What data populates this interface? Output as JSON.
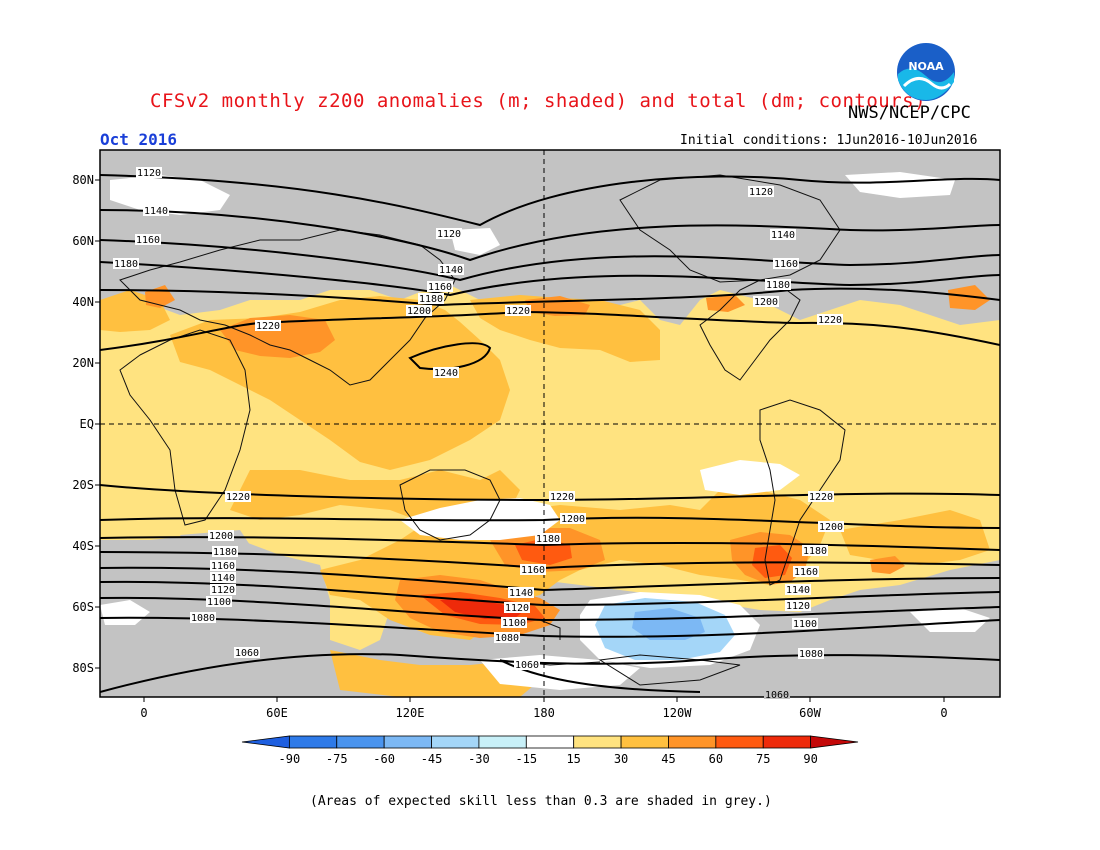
{
  "header": {
    "title": "CFSv2 monthly z200 anomalies (m; shaded) and total (dm; contours)",
    "org": "NWS/NCEP/CPC",
    "logo_text": "NOAA",
    "month": "Oct 2016",
    "init": "Initial conditions: 1Jun2016-10Jun2016"
  },
  "map": {
    "lat_labels": [
      "80N",
      "60N",
      "40N",
      "20N",
      "EQ",
      "20S",
      "40S",
      "60S",
      "80S"
    ],
    "lon_labels": [
      "0",
      "60E",
      "120E",
      "180",
      "120W",
      "60W",
      "0"
    ],
    "contour_values": [
      "1060",
      "1080",
      "1100",
      "1120",
      "1140",
      "1160",
      "1180",
      "1200",
      "1220",
      "1240"
    ],
    "grey_meaning": "skill < 0.3"
  },
  "colorbar": {
    "ticks": [
      "-90",
      "-75",
      "-60",
      "-45",
      "-30",
      "-15",
      "15",
      "30",
      "45",
      "60",
      "75",
      "90"
    ],
    "colors": [
      "#1e5fe0",
      "#2e7ae8",
      "#4a94ee",
      "#7cb8f4",
      "#a4d6f8",
      "#c8f0f8",
      "#ffffff",
      "#ffe380",
      "#ffc040",
      "#ff9428",
      "#ff5a10",
      "#ee2a0a",
      "#c40808"
    ]
  },
  "footnote": "(Areas of expected skill less than 0.3 are shaded in grey.)",
  "colors": {
    "title": "#e8141a",
    "month": "#1a3fd8",
    "grey": "#c3c3c3",
    "pale_yellow": "#ffe380",
    "light_orange": "#ffc040",
    "orange": "#ff9428",
    "red_orange": "#ff5a10",
    "red": "#ee2a0a",
    "light_blue": "#a4d6f8",
    "blue": "#7cb8f4"
  }
}
